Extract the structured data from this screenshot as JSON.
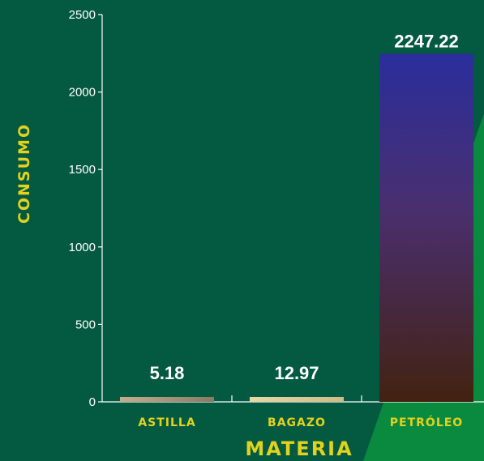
{
  "chart_data": {
    "type": "bar",
    "categories": [
      "ASTILLA",
      "BAGAZO",
      "PETRÓLEO"
    ],
    "values": [
      5.18,
      12.97,
      2247.22
    ],
    "value_labels": [
      "5.18",
      "12.97",
      "2247.22"
    ],
    "xlabel": "MATERIA",
    "ylabel": "CONSUMO",
    "ylim": [
      0,
      2500
    ],
    "yticks": [
      0,
      500,
      1000,
      1500,
      2000,
      2500
    ],
    "grid": false,
    "colors": {
      "background": "#045a40",
      "accent_shape": "#0a8a3e",
      "axis": "#ffffff",
      "labels": "#e2d21e",
      "bar_astilla": [
        "#c2ad8e",
        "#8c7a66"
      ],
      "bar_bagazo": [
        "#e6d8a8",
        "#cdbc86"
      ],
      "bar_petroleo_top": "#2a2e9c",
      "bar_petroleo_bottom": "#432211"
    }
  }
}
